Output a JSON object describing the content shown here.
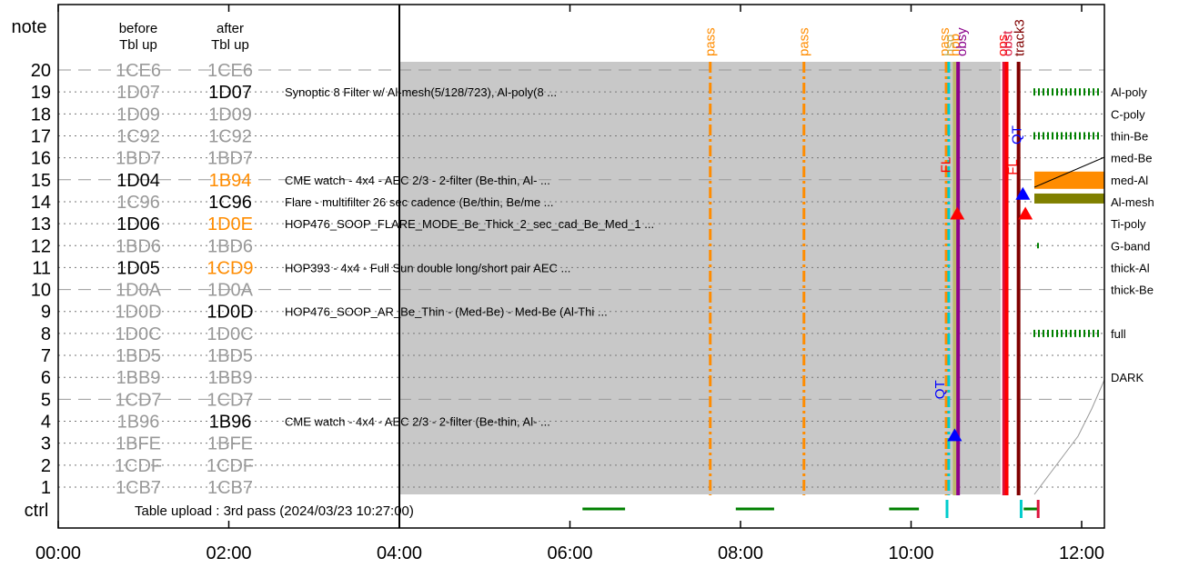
{
  "chart_data": {
    "type": "timeline",
    "header": {
      "note": "note",
      "before": [
        "before",
        "Tbl up"
      ],
      "after": [
        "after",
        "Tbl up"
      ],
      "ctrl": "ctrl"
    },
    "x_ticks": [
      "00:00",
      "02:00",
      "04:00",
      "06:00",
      "08:00",
      "10:00",
      "12:00"
    ],
    "x_range_hours": [
      0,
      13.0
    ],
    "rows": [
      {
        "n": 20,
        "before": "1CE6",
        "after": "1CE6",
        "bst": "gray",
        "ast": "gray",
        "desc": "",
        "dash": true
      },
      {
        "n": 19,
        "before": "1D07",
        "after": "1D07",
        "bst": "gray",
        "ast": "black",
        "desc": "Synoptic 8 Filter w/ Al-mesh(5/128/723), Al-poly(8 ..."
      },
      {
        "n": 18,
        "before": "1D09",
        "after": "1D09",
        "bst": "gray",
        "ast": "gray",
        "desc": ""
      },
      {
        "n": 17,
        "before": "1C92",
        "after": "1C92",
        "bst": "gray",
        "ast": "gray",
        "desc": ""
      },
      {
        "n": 16,
        "before": "1BD7",
        "after": "1BD7",
        "bst": "gray",
        "ast": "gray",
        "desc": ""
      },
      {
        "n": 15,
        "before": "1D04",
        "after": "1B94",
        "bst": "black",
        "ast": "orange",
        "desc": "CME watch - 4x4 - AEC 2/3 - 2-filter (Be-thin, Al- ...",
        "dash": true
      },
      {
        "n": 14,
        "before": "1C96",
        "after": "1C96",
        "bst": "gray",
        "ast": "black",
        "desc": "Flare - multifilter 26 sec cadence (Be/thin, Be/me ..."
      },
      {
        "n": 13,
        "before": "1D06",
        "after": "1D0E",
        "bst": "black",
        "ast": "orange",
        "desc": "HOP476_SOOP_FLARE_MODE_Be_Thick_2_sec_cad_Be_Med_1 ..."
      },
      {
        "n": 12,
        "before": "1BD6",
        "after": "1BD6",
        "bst": "gray",
        "ast": "gray",
        "desc": ""
      },
      {
        "n": 11,
        "before": "1D05",
        "after": "1CD9",
        "bst": "black",
        "ast": "orange",
        "desc": "HOP393 - 4x4 - Full Sun double long/short pair AEC ..."
      },
      {
        "n": 10,
        "before": "1D0A",
        "after": "1D0A",
        "bst": "gray",
        "ast": "gray",
        "desc": "",
        "dash": true
      },
      {
        "n": 9,
        "before": "1D0D",
        "after": "1D0D",
        "bst": "gray",
        "ast": "black",
        "desc": "HOP476_SOOP_AR_Be_Thin - (Med-Be) - Med-Be (Al-Thi ..."
      },
      {
        "n": 8,
        "before": "1D0C",
        "after": "1D0C",
        "bst": "gray",
        "ast": "gray",
        "desc": ""
      },
      {
        "n": 7,
        "before": "1BD5",
        "after": "1BD5",
        "bst": "gray",
        "ast": "gray",
        "desc": ""
      },
      {
        "n": 6,
        "before": "1BB9",
        "after": "1BB9",
        "bst": "gray",
        "ast": "gray",
        "desc": ""
      },
      {
        "n": 5,
        "before": "1CD7",
        "after": "1CD7",
        "bst": "gray",
        "ast": "gray",
        "desc": "",
        "dash": true
      },
      {
        "n": 4,
        "before": "1B96",
        "after": "1B96",
        "bst": "gray",
        "ast": "black",
        "desc": "CME watch - 4x4 - AEC 2/3 - 2-filter (Be-thin, Al- ..."
      },
      {
        "n": 3,
        "before": "1BFE",
        "after": "1BFE",
        "bst": "gray",
        "ast": "gray",
        "desc": ""
      },
      {
        "n": 2,
        "before": "1CDF",
        "after": "1CDF",
        "bst": "gray",
        "ast": "gray",
        "desc": ""
      },
      {
        "n": 1,
        "before": "1CB7",
        "after": "1CB7",
        "bst": "gray",
        "ast": "gray",
        "desc": ""
      }
    ],
    "gray_region_hours": [
      4.0,
      12.0
    ],
    "vlines": [
      {
        "t": 7.65,
        "color": "#ff8c00",
        "style": "dashdot",
        "label": "pass"
      },
      {
        "t": 8.75,
        "color": "#ff8c00",
        "style": "dashdot",
        "label": "pass"
      },
      {
        "t": 10.42,
        "color": "#ff8c00",
        "style": "dashdot",
        "label": "pass"
      },
      {
        "t": 10.45,
        "color": "#00cccc",
        "style": "dashdot",
        "label": ""
      },
      {
        "t": 10.52,
        "color": "#bdb76b",
        "style": "solid",
        "label": "obsy"
      },
      {
        "t": 10.56,
        "color": "#8b008b",
        "style": "solid",
        "label": "obsy"
      },
      {
        "t": 11.1,
        "color": "#dc143c",
        "style": "solid",
        "label": "ops"
      },
      {
        "t": 11.13,
        "color": "#ff0000",
        "style": "solid",
        "label": "obst"
      },
      {
        "t": 11.27,
        "color": "#800000",
        "style": "solid",
        "label": "track3"
      }
    ],
    "top_labels": [
      {
        "t": 7.65,
        "text": "pass",
        "color": "#ff8c00"
      },
      {
        "t": 8.75,
        "text": "pass",
        "color": "#ff8c00"
      },
      {
        "t": 10.4,
        "text": "pass",
        "color": "#ff8c00"
      },
      {
        "t": 10.46,
        "text": "hso",
        "color": "#bdb76b"
      },
      {
        "t": 10.52,
        "text": "hop",
        "color": "#ff8c00"
      },
      {
        "t": 10.6,
        "text": "obsy",
        "color": "#8b008b"
      },
      {
        "t": 11.08,
        "text": "ops",
        "color": "#ff0000"
      },
      {
        "t": 11.14,
        "text": "obst",
        "color": "#dc143c"
      },
      {
        "t": 11.28,
        "text": "track3",
        "color": "#800000"
      }
    ],
    "markers": [
      {
        "t": 10.55,
        "row": 13.4,
        "color": "#ff0000",
        "dir": "up"
      },
      {
        "t": 10.52,
        "row": 3.3,
        "color": "#0000ff",
        "dir": "up"
      },
      {
        "t": 11.32,
        "row": 14.3,
        "color": "#0000ff",
        "dir": "up"
      },
      {
        "t": 11.35,
        "row": 13.4,
        "color": "#ff0000",
        "dir": "up"
      }
    ],
    "rot_labels": [
      {
        "t": 10.47,
        "row": 15.1,
        "text": "FL",
        "color": "#ff0000"
      },
      {
        "t": 10.4,
        "row": 4.8,
        "text": "QT",
        "color": "#0000ff"
      },
      {
        "t": 11.25,
        "row": 15.0,
        "text": "FL",
        "color": "#ff0000"
      },
      {
        "t": 11.3,
        "row": 16.4,
        "text": "QT",
        "color": "#0000ff"
      }
    ],
    "ctrl": {
      "text": "Table upload : 3rd pass (2024/03/23 10:27:00)",
      "segments": [
        {
          "t0": 6.15,
          "t1": 6.65,
          "color": "#008000"
        },
        {
          "t0": 7.95,
          "t1": 8.4,
          "color": "#008000"
        },
        {
          "t0": 9.75,
          "t1": 10.1,
          "color": "#008000"
        },
        {
          "t0": 11.33,
          "t1": 11.5,
          "color": "#008000"
        }
      ],
      "ticks": [
        {
          "t": 10.43,
          "color": "#00cccc"
        },
        {
          "t": 11.3,
          "color": "#00cccc"
        },
        {
          "t": 11.5,
          "color": "#dc143c"
        }
      ]
    },
    "filters": [
      {
        "label": "Al-poly",
        "fill": "ticks",
        "color": "#008000"
      },
      {
        "label": "C-poly",
        "fill": "none"
      },
      {
        "label": "thin-Be",
        "fill": "ticks",
        "color": "#008000"
      },
      {
        "label": "med-Be",
        "fill": "none"
      },
      {
        "label": "med-Al",
        "fill": "bar",
        "color": "#ff8c00"
      },
      {
        "label": "Al-mesh",
        "fill": "bar",
        "color": "#808000"
      },
      {
        "label": "Ti-poly",
        "fill": "none"
      },
      {
        "label": "G-band",
        "fill": "dot",
        "color": "#008000"
      },
      {
        "label": "thick-Al",
        "fill": "none"
      },
      {
        "label": "thick-Be",
        "fill": "none"
      },
      {
        "label": "",
        "fill": "none"
      },
      {
        "label": "full",
        "fill": "ticks",
        "color": "#008000"
      },
      {
        "label": "",
        "fill": "none"
      },
      {
        "label": "DARK",
        "fill": "none"
      }
    ],
    "colors": {
      "gray_text": "#999999",
      "orange": "#ff8c00",
      "gray_fill": "#c8c8c8"
    }
  }
}
